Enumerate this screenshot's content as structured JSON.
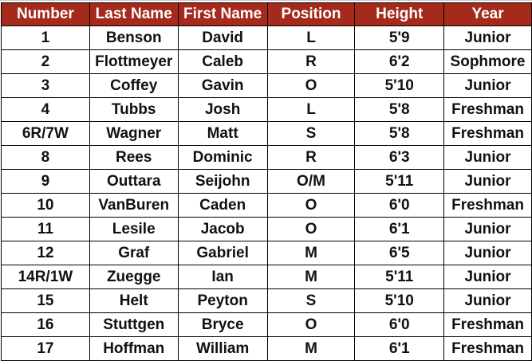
{
  "colors": {
    "header_bg": "#a52a1c",
    "header_text": "#ffffff"
  },
  "columns": [
    "Number",
    "Last Name",
    "First Name",
    "Position",
    "Height",
    "Year"
  ],
  "rows": [
    [
      "1",
      "Benson",
      "David",
      "L",
      "5'9",
      "Junior"
    ],
    [
      "2",
      "Flottmeyer",
      "Caleb",
      "R",
      "6'2",
      "Sophmore"
    ],
    [
      "3",
      "Coffey",
      "Gavin",
      "O",
      "5'10",
      "Junior"
    ],
    [
      "4",
      "Tubbs",
      "Josh",
      "L",
      "5'8",
      "Freshman"
    ],
    [
      "6R/7W",
      "Wagner",
      "Matt",
      "S",
      "5'8",
      "Freshman"
    ],
    [
      "8",
      "Rees",
      "Dominic",
      "R",
      "6'3",
      "Junior"
    ],
    [
      "9",
      "Outtara",
      "Seijohn",
      "O/M",
      "5'11",
      "Junior"
    ],
    [
      "10",
      "VanBuren",
      "Caden",
      "O",
      "6'0",
      "Freshman"
    ],
    [
      "11",
      "Lesile",
      "Jacob",
      "O",
      "6'1",
      "Junior"
    ],
    [
      "12",
      "Graf",
      "Gabriel",
      "M",
      "6'5",
      "Junior"
    ],
    [
      "14R/1W",
      "Zuegge",
      "Ian",
      "M",
      "5'11",
      "Junior"
    ],
    [
      "15",
      "Helt",
      "Peyton",
      "S",
      "5'10",
      "Junior"
    ],
    [
      "16",
      "Stuttgen",
      "Bryce",
      "O",
      "6'0",
      "Freshman"
    ],
    [
      "17",
      "Hoffman",
      "William",
      "M",
      "6'1",
      "Freshman"
    ]
  ]
}
